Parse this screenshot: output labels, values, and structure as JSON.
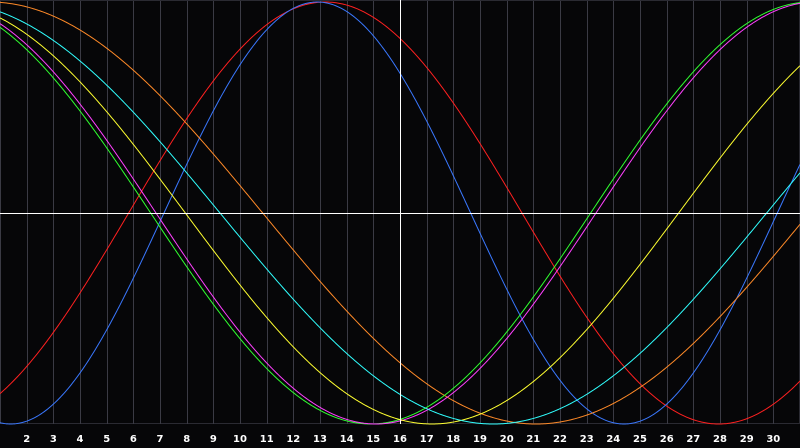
{
  "chart_data": {
    "type": "line",
    "title": "",
    "xlabel": "",
    "ylabel": "",
    "xlim": [
      1,
      31
    ],
    "ylim": [
      0,
      1
    ],
    "x_ticks": [
      2,
      3,
      4,
      5,
      6,
      7,
      8,
      9,
      10,
      11,
      12,
      13,
      14,
      15,
      16,
      17,
      18,
      19,
      20,
      21,
      22,
      23,
      24,
      25,
      26,
      27,
      28,
      29,
      30
    ],
    "grid": true,
    "crosshair": {
      "x": 16,
      "y": 0.5
    },
    "series": [
      {
        "color": "#ff2020",
        "period": 29.5,
        "peak": 13.2
      },
      {
        "color": "#3a78ff",
        "period": 23.0,
        "peak": 12.9
      },
      {
        "color": "#ff8a28",
        "period": 41.0,
        "peak": 0.6
      },
      {
        "color": "#30ff30",
        "period": 33.0,
        "peak": 31.4
      },
      {
        "color": "#ff40ff",
        "period": 33.0,
        "peak": 31.6
      },
      {
        "color": "#ffff30",
        "period": 37.0,
        "peak": 35.7
      },
      {
        "color": "#30ffff",
        "period": 41.0,
        "peak": 40.0
      }
    ]
  }
}
